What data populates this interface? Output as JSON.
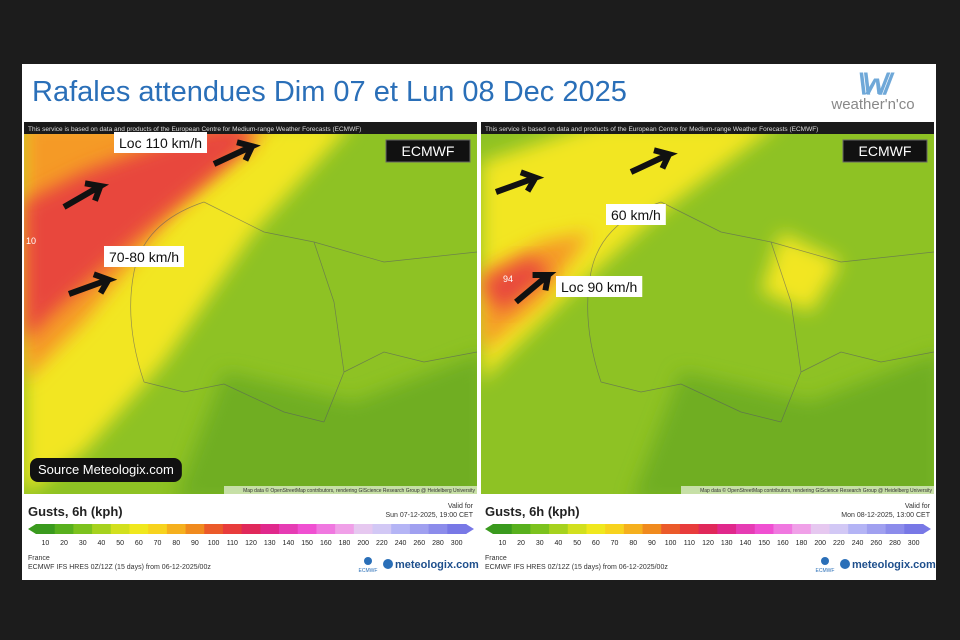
{
  "header": {
    "title": "Rafales attendues Dim 07 et Lun 08 Dec 2025",
    "logo": "weather'n'co"
  },
  "panels": [
    {
      "notice": "This service is based on data and products of the European Centre for Medium-range Weather Forecasts (ECMWF)",
      "model_badge": "ECMWF",
      "annotations": [
        "Loc 110 km/h",
        "70-80 km/h"
      ],
      "map_labels": [
        "10"
      ],
      "source": "Source Meteologix.com",
      "attribution": "Map data © OpenStreetMap contributors, rendering GIScience Research Group @ Heidelberg University",
      "legend": {
        "title": "Gusts, 6h (kph)",
        "valid_label": "Valid for",
        "valid_time": "Sun 07-12-2025, 19:00 CET",
        "scale": [
          10,
          20,
          30,
          40,
          50,
          60,
          70,
          80,
          90,
          100,
          110,
          120,
          130,
          140,
          150,
          160,
          180,
          200,
          220,
          240,
          260,
          280,
          300
        ],
        "region": "France",
        "model_run": "ECMWF IFS HRES 0Z/12Z (15 days) from 06-12-2025/00z",
        "ecmwf_logo": "ECMWF",
        "brand": "meteologix.com"
      }
    },
    {
      "notice": "This service is based on data and products of the European Centre for Medium-range Weather Forecasts (ECMWF)",
      "model_badge": "ECMWF",
      "annotations": [
        "60 km/h",
        "Loc 90 km/h"
      ],
      "map_labels": [
        "94"
      ],
      "attribution": "Map data © OpenStreetMap contributors, rendering GIScience Research Group @ Heidelberg University",
      "legend": {
        "title": "Gusts, 6h (kph)",
        "valid_label": "Valid for",
        "valid_time": "Mon 08-12-2025, 13:00 CET",
        "scale": [
          10,
          20,
          30,
          40,
          50,
          60,
          70,
          80,
          90,
          100,
          110,
          120,
          130,
          140,
          150,
          160,
          180,
          200,
          220,
          240,
          260,
          280,
          300
        ],
        "region": "France",
        "model_run": "ECMWF IFS HRES 0Z/12Z (15 days) from 06-12-2025/00z",
        "ecmwf_logo": "ECMWF",
        "brand": "meteologix.com"
      }
    }
  ]
}
